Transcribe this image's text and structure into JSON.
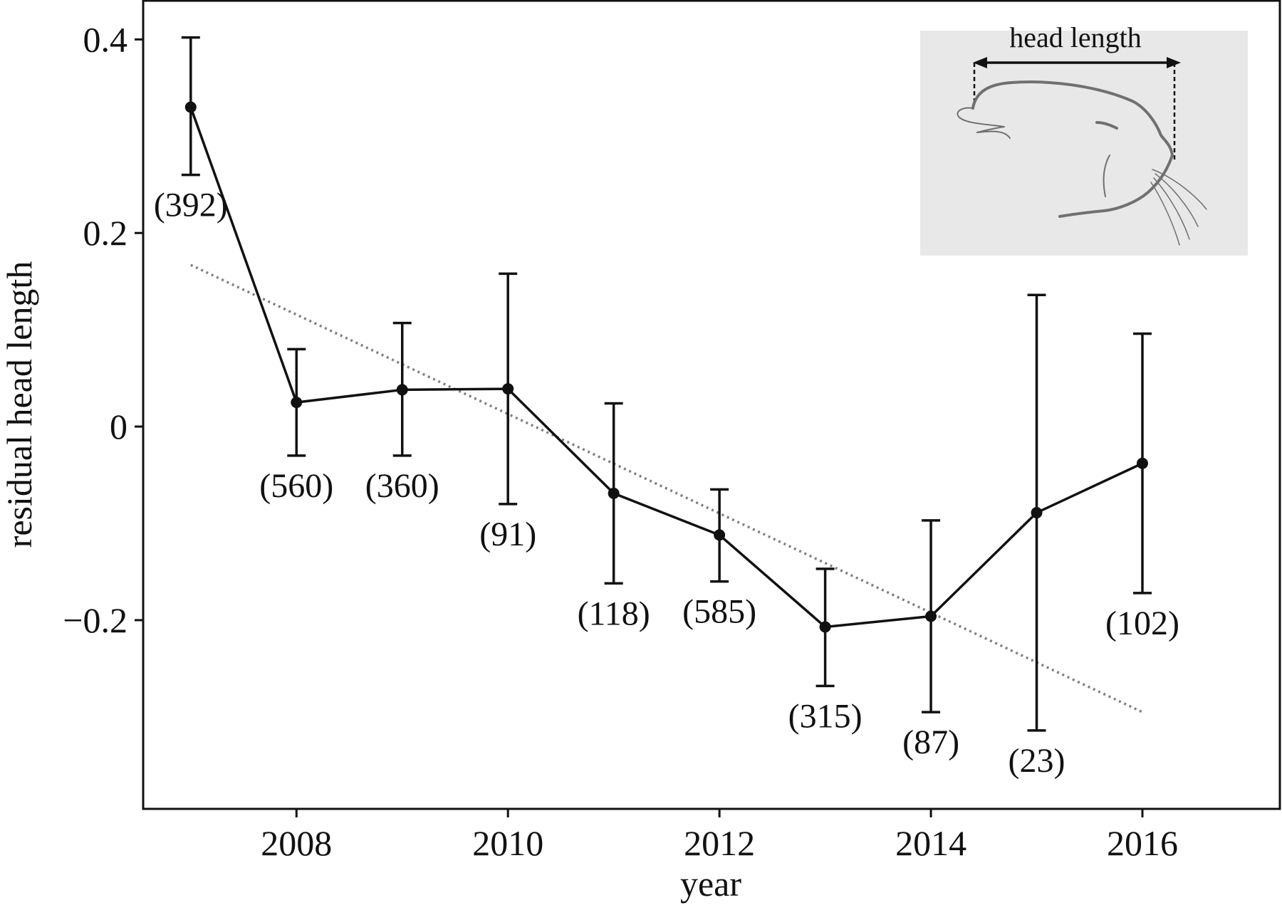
{
  "chart_data": {
    "type": "line",
    "xlabel": "year",
    "ylabel": "residual head length",
    "xlim": [
      2006.55,
      2017.3
    ],
    "ylim": [
      -0.395,
      0.44
    ],
    "xticks": [
      2008,
      2010,
      2012,
      2014,
      2016
    ],
    "xtick_labels": [
      "2008",
      "2010",
      "2012",
      "2014",
      "2016"
    ],
    "yticks": [
      -0.2,
      0,
      0.2,
      0.4
    ],
    "ytick_labels": [
      "−0.2",
      "0",
      "0.2",
      "0.4"
    ],
    "grid": false,
    "series": [
      {
        "points": [
          {
            "x": 2007,
            "y": 0.33,
            "lo": 0.26,
            "hi": 0.402,
            "n": "(392)"
          },
          {
            "x": 2008,
            "y": 0.025,
            "lo": -0.03,
            "hi": 0.08,
            "n": "(560)"
          },
          {
            "x": 2009,
            "y": 0.038,
            "lo": -0.03,
            "hi": 0.107,
            "n": "(360)"
          },
          {
            "x": 2010,
            "y": 0.039,
            "lo": -0.08,
            "hi": 0.158,
            "n": "(91)"
          },
          {
            "x": 2011,
            "y": -0.069,
            "lo": -0.162,
            "hi": 0.024,
            "n": "(118)"
          },
          {
            "x": 2012,
            "y": -0.112,
            "lo": -0.16,
            "hi": -0.065,
            "n": "(585)"
          },
          {
            "x": 2013,
            "y": -0.207,
            "lo": -0.268,
            "hi": -0.147,
            "n": "(315)"
          },
          {
            "x": 2014,
            "y": -0.196,
            "lo": -0.295,
            "hi": -0.097,
            "n": "(87)"
          },
          {
            "x": 2015,
            "y": -0.089,
            "lo": -0.314,
            "hi": 0.136,
            "n": "(23)"
          },
          {
            "x": 2016,
            "y": -0.038,
            "lo": -0.172,
            "hi": 0.096,
            "n": "(102)"
          }
        ]
      }
    ],
    "trend_line": {
      "style": "dotted",
      "color": "#808080",
      "x": [
        2007,
        2016
      ],
      "y": [
        0.167,
        -0.295
      ]
    },
    "inset": {
      "label": "head length",
      "background": "#e8e8e8"
    },
    "colors": {
      "series": "#111111",
      "trend": "#808080",
      "inset_drawing": "#707070"
    }
  }
}
